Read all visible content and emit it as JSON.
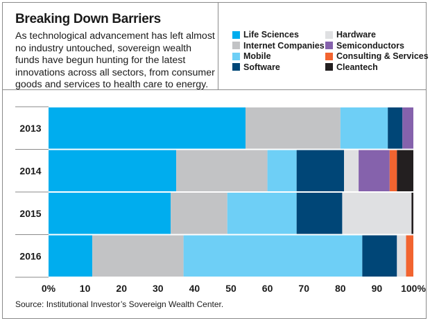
{
  "header": {
    "title": "Breaking Down Barriers",
    "description": "As technological advancement has left almost no industry untouched, sovereign wealth funds have begun hunting for the latest innovations across all sectors, from consumer goods and services to health care to energy."
  },
  "source": "Source: Institutional Investor’s Sovereign Wealth Center.",
  "chart_data": {
    "type": "bar",
    "orientation": "horizontal",
    "stacked": true,
    "normalized": true,
    "title": "Breaking Down Barriers",
    "xlabel": "",
    "ylabel": "",
    "xlim": [
      0,
      100
    ],
    "x_ticks": [
      "0%",
      "10",
      "20",
      "30",
      "40",
      "50",
      "60",
      "70",
      "80",
      "90",
      "100%"
    ],
    "grid": false,
    "legend_position": "top-right",
    "categories": [
      "2013",
      "2014",
      "2015",
      "2016"
    ],
    "series": [
      {
        "name": "Life Sciences",
        "color": "#00adee",
        "values": [
          54,
          35,
          33.5,
          12
        ]
      },
      {
        "name": "Internet Companies",
        "color": "#c2c3c5",
        "values": [
          26,
          25,
          15.5,
          25
        ]
      },
      {
        "name": "Mobile",
        "color": "#6ecff6",
        "values": [
          13,
          8,
          19,
          49
        ]
      },
      {
        "name": "Software",
        "color": "#004677",
        "values": [
          4,
          13,
          12.5,
          9.5
        ]
      },
      {
        "name": "Hardware",
        "color": "#dfe0e2",
        "values": [
          0,
          4,
          19,
          2.5
        ]
      },
      {
        "name": "Semiconductors",
        "color": "#8562ac",
        "values": [
          3,
          8.5,
          0,
          0
        ]
      },
      {
        "name": "Consulting & Services",
        "color": "#f26430",
        "values": [
          0,
          2,
          0,
          2
        ]
      },
      {
        "name": "Cleantech",
        "color": "#231f20",
        "values": [
          0,
          4.5,
          0.5,
          0
        ]
      }
    ]
  }
}
